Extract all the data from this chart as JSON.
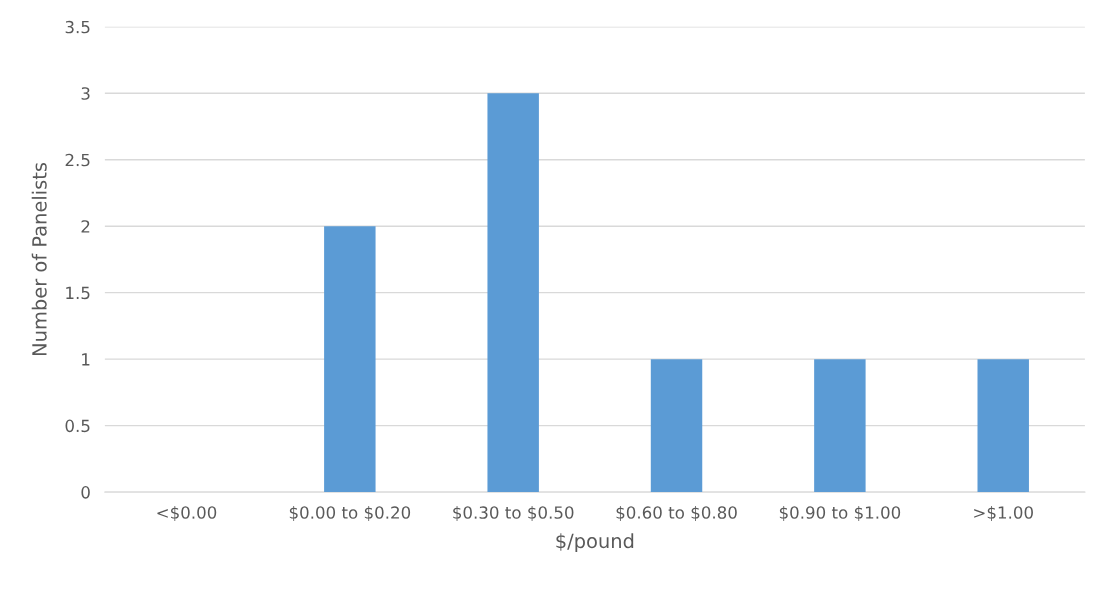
{
  "chart_data": {
    "type": "bar",
    "xlabel": "$/pound",
    "ylabel": "Number of Panelists",
    "categories": [
      "<$0.00",
      "$0.00 to $0.20",
      "$0.30 to $0.50",
      "$0.60 to $0.80",
      "$0.90 to $1.00",
      ">$1.00"
    ],
    "values": [
      0,
      2,
      3,
      1,
      1,
      1
    ],
    "color": "#5b9bd5",
    "ylim": [
      0,
      3.5
    ],
    "yticks": [
      0,
      0.5,
      1,
      1.5,
      2,
      2.5,
      3,
      3.5
    ],
    "grid": "y",
    "legend": false
  }
}
